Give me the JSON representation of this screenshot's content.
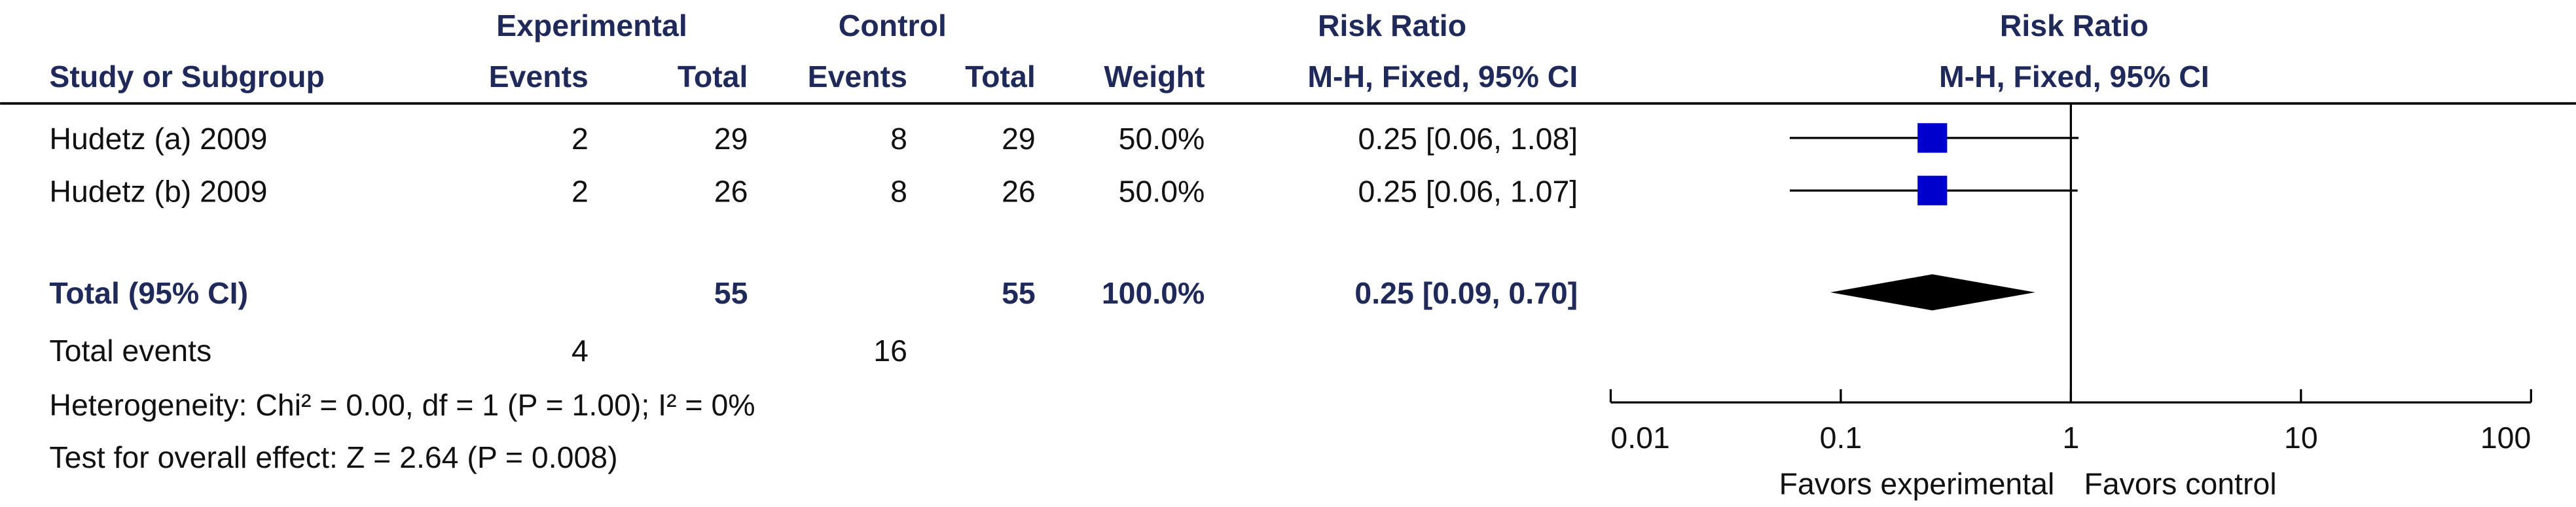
{
  "header": {
    "group_experimental": "Experimental",
    "group_control": "Control",
    "effect_title": "Risk Ratio",
    "plot_title": "Risk Ratio",
    "plot_subtitle": "M-H, Fixed, 95% CI",
    "columns": [
      "Study or Subgroup",
      "Events",
      "Total",
      "Events",
      "Total",
      "Weight",
      "M-H, Fixed, 95% CI"
    ]
  },
  "chart_data": {
    "type": "forest",
    "studies": [
      {
        "name": "Hudetz (a) 2009",
        "exp_events": 2,
        "exp_total": 29,
        "ctrl_events": 8,
        "ctrl_total": 29,
        "weight": "50.0%",
        "value": 0.25,
        "lower": 0.06,
        "upper": 1.08,
        "value_label": "0.25 [0.06, 1.08]"
      },
      {
        "name": "Hudetz (b) 2009",
        "exp_events": 2,
        "exp_total": 26,
        "ctrl_events": 8,
        "ctrl_total": 26,
        "weight": "50.0%",
        "value": 0.25,
        "lower": 0.06,
        "upper": 1.07,
        "value_label": "0.25 [0.06, 1.07]"
      }
    ],
    "total": {
      "name": "Total (95% CI)",
      "exp_total": 55,
      "ctrl_total": 55,
      "weight": "100.0%",
      "value": 0.25,
      "lower": 0.09,
      "upper": 0.7,
      "value_label": "0.25 [0.09, 0.70]"
    },
    "total_events": {
      "label": "Total events",
      "experimental": 4,
      "control": 16
    },
    "heterogeneity": "Heterogeneity: Chi² = 0.00, df = 1 (P = 1.00); I² = 0%",
    "overall_effect": "Test for overall effect: Z = 2.64 (P = 0.008)",
    "xlim": [
      0.01,
      100
    ],
    "xticks": [
      0.01,
      0.1,
      1,
      10,
      100
    ],
    "log_scale": true,
    "reference": 1,
    "favors_left": "Favors experimental",
    "favors_right": "Favors control",
    "square_color": "#0000cc",
    "diamond_color": "#000000"
  }
}
